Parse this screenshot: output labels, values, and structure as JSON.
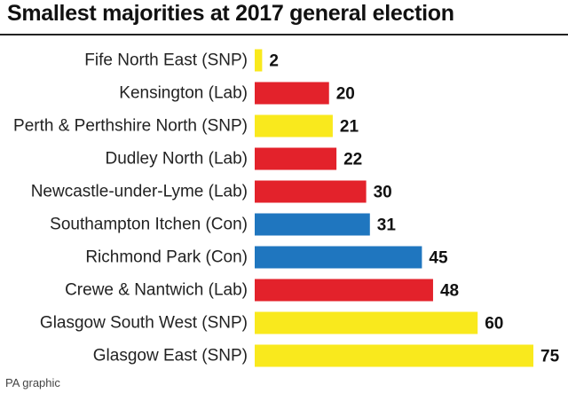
{
  "chart_data": {
    "type": "bar",
    "orientation": "horizontal",
    "title": "Smallest majorities at 2017 general election",
    "categories": [
      "Fife North East (SNP)",
      "Kensington (Lab)",
      "Perth & Perthshire North (SNP)",
      "Dudley North (Lab)",
      "Newcastle-under-Lyme (Lab)",
      "Southampton Itchen (Con)",
      "Richmond Park (Con)",
      "Crewe & Nantwich (Lab)",
      "Glasgow South West (SNP)",
      "Glasgow East (SNP)"
    ],
    "values": [
      2,
      20,
      21,
      22,
      30,
      31,
      45,
      48,
      60,
      75
    ],
    "value_labels": [
      "2",
      "20",
      "21",
      "22",
      "30",
      "31",
      "45",
      "48",
      "60",
      "75"
    ],
    "bar_colors": [
      "#f9e91d",
      "#e3222b",
      "#f9e91d",
      "#e3222b",
      "#e3222b",
      "#1f76bf",
      "#1f76bf",
      "#e3222b",
      "#f9e91d",
      "#f9e91d"
    ],
    "xlim": [
      0,
      75
    ],
    "xlabel": "",
    "ylabel": "",
    "grid": false,
    "legend": "none"
  },
  "source": "PA graphic"
}
